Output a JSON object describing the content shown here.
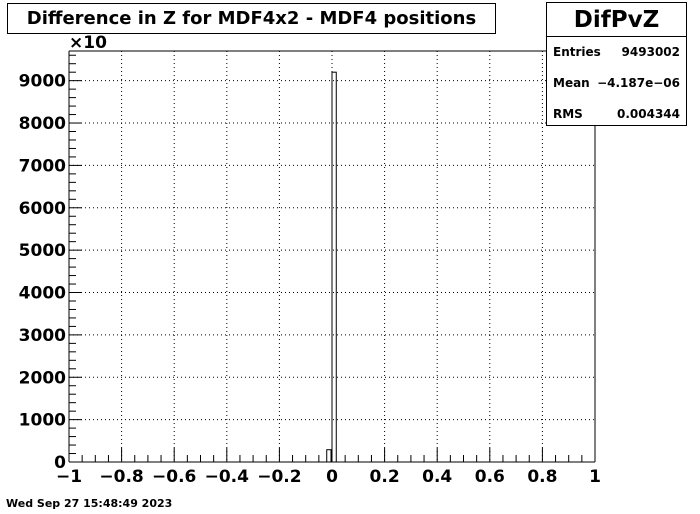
{
  "title": "Difference in Z for MDF4x2 - MDF4 positions",
  "stats": {
    "name": "DifPvZ",
    "entries_label": "Entries",
    "entries_value": "9493002",
    "mean_label": "Mean",
    "mean_value": "−4.187e−06",
    "rms_label": "RMS",
    "rms_value": "0.004344"
  },
  "footer": "Wed Sep 27 15:48:49 2023",
  "chart_data": {
    "type": "bar",
    "title": "Difference in Z for MDF4x2 - MDF4 positions",
    "xlabel": "",
    "ylabel": "",
    "y_multiplier": "×10",
    "xlim": [
      -1,
      1
    ],
    "ylim": [
      0,
      9700
    ],
    "x_ticks": [
      -1,
      -0.8,
      -0.6,
      -0.4,
      -0.2,
      0,
      0.2,
      0.4,
      0.6,
      0.8,
      1
    ],
    "x_tick_labels": [
      "−1",
      "−0.8",
      "−0.6",
      "−0.4",
      "−0.2",
      "0",
      "0.2",
      "0.4",
      "0.6",
      "0.8",
      "1"
    ],
    "y_ticks": [
      0,
      1000,
      2000,
      3000,
      4000,
      5000,
      6000,
      7000,
      8000,
      9000
    ],
    "y_tick_labels": [
      "0",
      "1000",
      "2000",
      "3000",
      "4000",
      "5000",
      "6000",
      "7000",
      "8000",
      "9000"
    ],
    "grid": true,
    "bins": [
      {
        "x_low": -0.02,
        "x_high": 0.0,
        "value": 290
      },
      {
        "x_low": 0.0,
        "x_high": 0.02,
        "value": 9200
      }
    ]
  }
}
